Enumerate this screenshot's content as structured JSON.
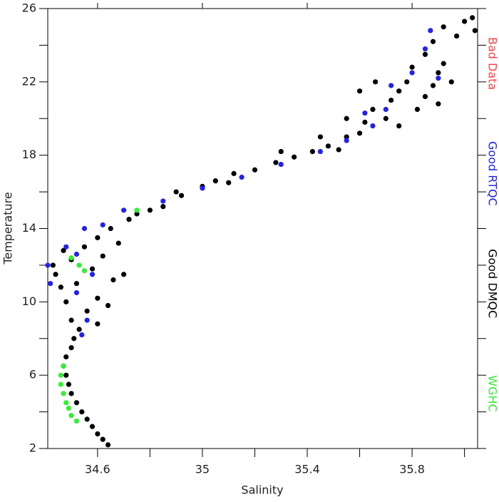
{
  "chart_data": {
    "type": "scatter",
    "xlabel": "Salinity",
    "ylabel": "Temperature",
    "xlim": [
      34.41,
      36.05
    ],
    "xticks": [
      34.6,
      35.0,
      35.4,
      35.8
    ],
    "xminorticks": [
      34.8,
      35.2,
      35.6,
      36.0
    ],
    "ylim": [
      2,
      26
    ],
    "yticks": [
      2,
      6,
      10,
      14,
      18,
      22,
      26
    ],
    "yminorticks": [
      4,
      8,
      12,
      16,
      20,
      24
    ],
    "legend": "right",
    "series": [
      {
        "name": "Bad Data",
        "color": "#ff4444",
        "x": [],
        "values": []
      },
      {
        "name": "Good RTQC",
        "color": "#2222ee",
        "x": [
          34.42,
          34.41,
          34.48,
          34.55,
          34.62,
          34.7,
          34.85,
          35.0,
          35.15,
          35.3,
          35.45,
          35.55,
          35.65,
          35.7,
          35.72,
          35.8,
          35.85,
          35.87,
          35.9,
          34.52,
          34.56,
          34.58,
          34.52,
          34.54,
          35.62
        ],
        "values": [
          11.0,
          12.0,
          13.0,
          14.0,
          14.2,
          15.0,
          15.5,
          16.2,
          16.8,
          17.5,
          18.2,
          18.8,
          19.6,
          20.5,
          21.8,
          22.5,
          23.8,
          24.8,
          22.2,
          10.5,
          9.0,
          11.5,
          12.6,
          8.2,
          20.3
        ]
      },
      {
        "name": "Good DMQC",
        "color": "#000000",
        "x": [
          34.64,
          34.62,
          34.6,
          34.58,
          34.56,
          34.54,
          34.52,
          34.5,
          34.49,
          34.48,
          34.47,
          34.48,
          34.5,
          34.51,
          34.53,
          34.5,
          34.56,
          34.48,
          34.6,
          34.46,
          34.52,
          34.66,
          34.44,
          34.58,
          34.7,
          34.43,
          34.5,
          34.62,
          34.47,
          34.55,
          34.6,
          34.65,
          34.72,
          34.8,
          34.85,
          34.92,
          35.0,
          35.05,
          35.12,
          35.2,
          35.28,
          35.35,
          35.42,
          35.48,
          35.52,
          35.55,
          35.6,
          35.62,
          35.65,
          35.7,
          35.72,
          35.75,
          35.78,
          35.8,
          35.82,
          35.85,
          35.88,
          35.9,
          35.92,
          35.95,
          35.85,
          35.88,
          35.92,
          35.97,
          36.0,
          36.03,
          36.04,
          35.66,
          35.6,
          35.55,
          35.75,
          35.9,
          35.45,
          35.3,
          35.1,
          34.9,
          34.75,
          34.68,
          34.64,
          34.6
        ],
        "values": [
          2.2,
          2.5,
          2.8,
          3.2,
          3.6,
          4.0,
          4.5,
          5.0,
          5.5,
          6.0,
          6.5,
          7.0,
          7.5,
          8.0,
          8.5,
          9.0,
          9.5,
          10.0,
          10.2,
          10.8,
          11.0,
          11.2,
          11.5,
          11.8,
          11.5,
          12.0,
          12.3,
          12.5,
          12.8,
          13.0,
          13.5,
          14.0,
          14.5,
          15.0,
          15.2,
          15.8,
          16.3,
          16.6,
          17.0,
          17.2,
          17.6,
          17.9,
          18.2,
          18.5,
          18.3,
          19.0,
          19.2,
          19.8,
          20.5,
          20.0,
          21.0,
          21.5,
          22.0,
          22.8,
          20.5,
          21.2,
          21.8,
          22.5,
          23.0,
          22.0,
          23.5,
          24.2,
          25.0,
          24.5,
          25.3,
          25.5,
          24.8,
          22.0,
          21.5,
          20.0,
          19.6,
          20.8,
          19.0,
          18.2,
          16.5,
          16.0,
          14.8,
          13.2,
          9.8,
          8.8
        ]
      },
      {
        "name": "WGHC",
        "color": "#33ee33",
        "x": [
          34.46,
          34.46,
          34.47,
          34.48,
          34.49,
          34.5,
          34.52,
          34.47,
          34.53,
          34.55,
          34.5,
          34.75
        ],
        "values": [
          6.0,
          5.5,
          5.0,
          4.5,
          4.2,
          3.8,
          3.5,
          6.5,
          12.0,
          11.7,
          12.4,
          15.0
        ]
      }
    ]
  }
}
